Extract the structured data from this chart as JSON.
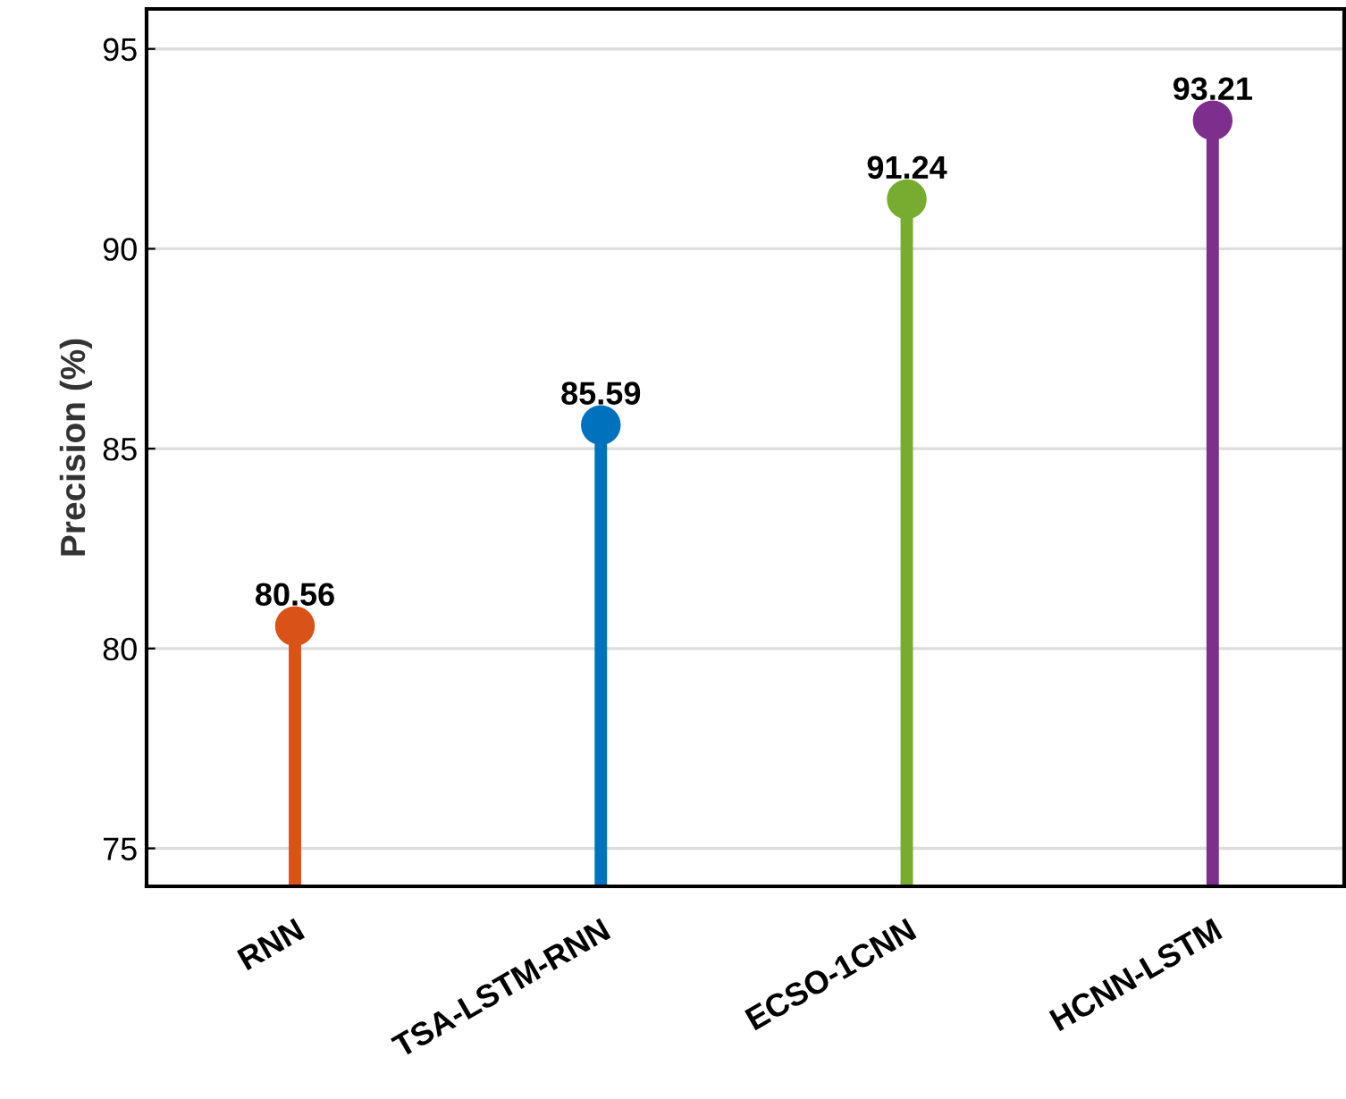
{
  "chart_data": {
    "type": "lollipop",
    "ylabel": "Precision (%)",
    "categories": [
      "RNN",
      "TSA-LSTM-RNN",
      "ECSO-1CNN",
      "HCNN-LSTM"
    ],
    "values": [
      80.56,
      85.59,
      91.24,
      93.21
    ],
    "colors": [
      "#d95319",
      "#0072bd",
      "#77ac30",
      "#7e2f8e"
    ],
    "ylim": [
      74.05,
      96
    ],
    "yticks": [
      75,
      80,
      85,
      90,
      95
    ],
    "grid": "y",
    "data_labels": true,
    "marker": "circle"
  }
}
